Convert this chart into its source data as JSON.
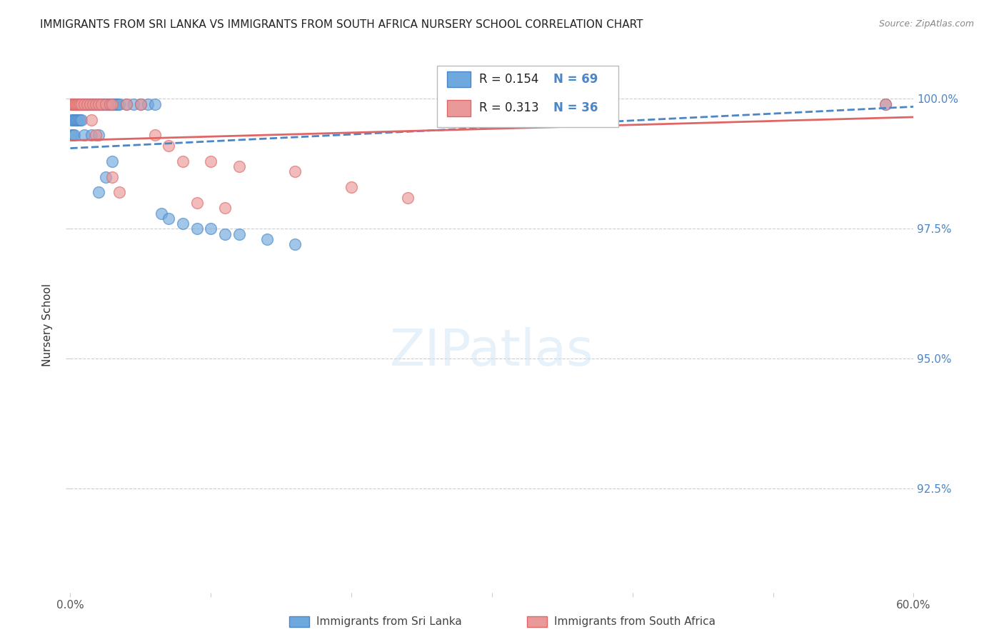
{
  "title": "IMMIGRANTS FROM SRI LANKA VS IMMIGRANTS FROM SOUTH AFRICA NURSERY SCHOOL CORRELATION CHART",
  "source": "Source: ZipAtlas.com",
  "ylabel": "Nursery School",
  "ytick_labels": [
    "92.5%",
    "95.0%",
    "97.5%",
    "100.0%"
  ],
  "ytick_values": [
    0.925,
    0.95,
    0.975,
    1.0
  ],
  "xlim": [
    0.0,
    0.6
  ],
  "ylim": [
    0.905,
    1.008
  ],
  "legend_sri_lanka": "Immigrants from Sri Lanka",
  "legend_south_africa": "Immigrants from South Africa",
  "R_sri_lanka": 0.154,
  "N_sri_lanka": 69,
  "R_south_africa": 0.313,
  "N_south_africa": 36,
  "color_sri_lanka": "#6fa8dc",
  "color_south_africa": "#ea9999",
  "trendline_color_sri_lanka": "#4a86c8",
  "trendline_color_south_africa": "#e06666",
  "background_color": "#ffffff",
  "sri_lanka_x": [
    0.001,
    0.002,
    0.003,
    0.004,
    0.005,
    0.006,
    0.007,
    0.008,
    0.009,
    0.01,
    0.011,
    0.012,
    0.013,
    0.014,
    0.015,
    0.016,
    0.017,
    0.018,
    0.019,
    0.02,
    0.021,
    0.022,
    0.023,
    0.024,
    0.025,
    0.026,
    0.027,
    0.028,
    0.029,
    0.03,
    0.031,
    0.032,
    0.033,
    0.034,
    0.035,
    0.04,
    0.045,
    0.05,
    0.055,
    0.06,
    0.001,
    0.002,
    0.003,
    0.004,
    0.005,
    0.006,
    0.007,
    0.008,
    0.001,
    0.002,
    0.003,
    0.01,
    0.015,
    0.02,
    0.03,
    0.025,
    0.02,
    0.065,
    0.07,
    0.08,
    0.09,
    0.1,
    0.11,
    0.12,
    0.14,
    0.16,
    0.58
  ],
  "sri_lanka_y": [
    0.999,
    0.999,
    0.999,
    0.999,
    0.999,
    0.999,
    0.999,
    0.999,
    0.999,
    0.999,
    0.999,
    0.999,
    0.999,
    0.999,
    0.999,
    0.999,
    0.999,
    0.999,
    0.999,
    0.999,
    0.999,
    0.999,
    0.999,
    0.999,
    0.999,
    0.999,
    0.999,
    0.999,
    0.999,
    0.999,
    0.999,
    0.999,
    0.999,
    0.999,
    0.999,
    0.999,
    0.999,
    0.999,
    0.999,
    0.999,
    0.996,
    0.996,
    0.996,
    0.996,
    0.996,
    0.996,
    0.996,
    0.996,
    0.993,
    0.993,
    0.993,
    0.993,
    0.993,
    0.993,
    0.988,
    0.985,
    0.982,
    0.978,
    0.977,
    0.976,
    0.975,
    0.975,
    0.974,
    0.974,
    0.973,
    0.972,
    0.999
  ],
  "south_africa_x": [
    0.001,
    0.002,
    0.003,
    0.004,
    0.005,
    0.006,
    0.007,
    0.008,
    0.01,
    0.012,
    0.014,
    0.016,
    0.018,
    0.02,
    0.022,
    0.025,
    0.028,
    0.03,
    0.04,
    0.05,
    0.06,
    0.08,
    0.1,
    0.12,
    0.16,
    0.2,
    0.24,
    0.03,
    0.035,
    0.015,
    0.018,
    0.07,
    0.09,
    0.11,
    0.58
  ],
  "south_africa_y": [
    0.999,
    0.999,
    0.999,
    0.999,
    0.999,
    0.999,
    0.999,
    0.999,
    0.999,
    0.999,
    0.999,
    0.999,
    0.999,
    0.999,
    0.999,
    0.999,
    0.999,
    0.999,
    0.999,
    0.999,
    0.993,
    0.988,
    0.988,
    0.987,
    0.986,
    0.983,
    0.981,
    0.985,
    0.982,
    0.996,
    0.993,
    0.991,
    0.98,
    0.979,
    0.999
  ],
  "trendline_sri_lanka": [
    0.0,
    0.6,
    0.9905,
    0.9985
  ],
  "trendline_south_africa": [
    0.0,
    0.6,
    0.992,
    0.9965
  ]
}
